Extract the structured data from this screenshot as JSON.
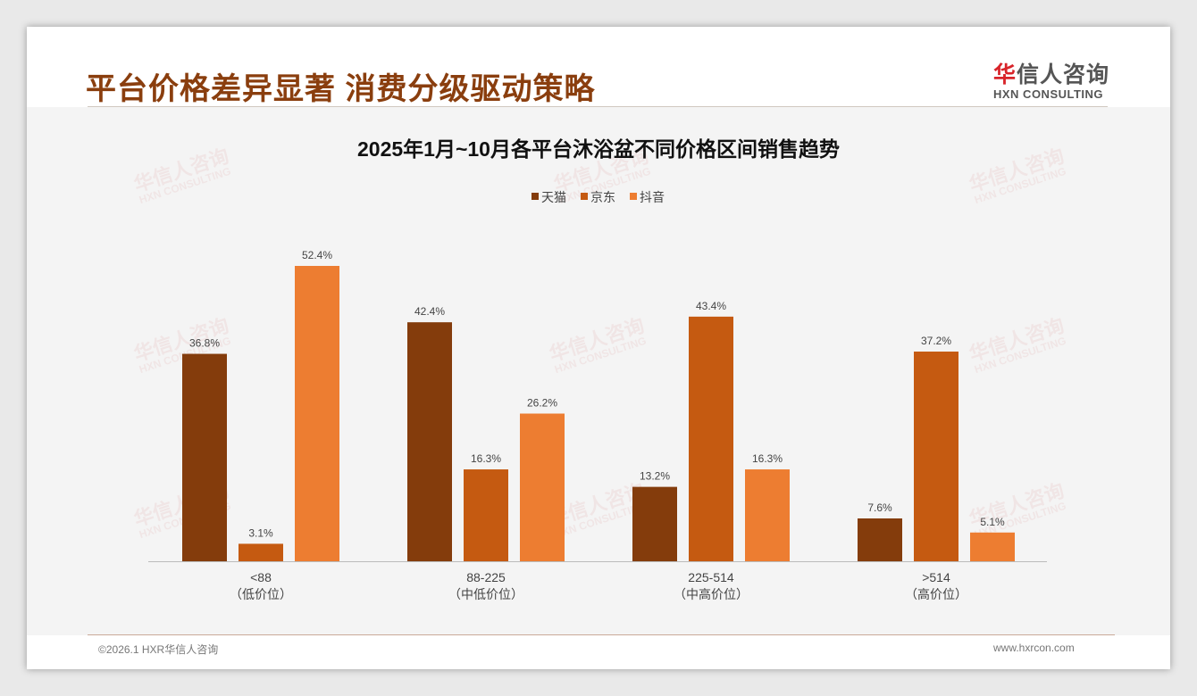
{
  "header": {
    "title": "平台价格差异显著 消费分级驱动策略",
    "logo_cn_accent": "华",
    "logo_cn_rest": "信人咨询",
    "logo_en": "HXN CONSULTING"
  },
  "footer": {
    "copyright": "©2026.1 HXR华信人咨询",
    "url": "www.hxrcon.com"
  },
  "watermark": {
    "cn": "华信人咨询",
    "en": "HXN CONSULTING"
  },
  "chart_data": {
    "type": "bar",
    "title": "2025年1月~10月各平台沐浴盆不同价格区间销售趋势",
    "categories": [
      "<88",
      "88-225",
      "225-514",
      ">514"
    ],
    "category_sublabels": [
      "（低价位）",
      "（中低价位）",
      "（中高价位）",
      "（高价位）"
    ],
    "series": [
      {
        "name": "天猫",
        "color": "#843C0C",
        "values": [
          36.8,
          42.4,
          13.2,
          7.6
        ]
      },
      {
        "name": "京东",
        "color": "#C55A11",
        "values": [
          3.1,
          16.3,
          43.4,
          37.2
        ]
      },
      {
        "name": "抖音",
        "color": "#ED7D31",
        "values": [
          52.4,
          26.2,
          16.3,
          5.1
        ]
      }
    ],
    "unit": "%",
    "legend_position": "top-center",
    "ylim": [
      0,
      55
    ],
    "grid": false
  }
}
